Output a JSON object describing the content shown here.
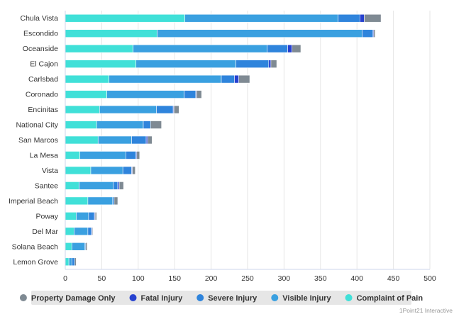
{
  "chart_data": {
    "type": "bar",
    "orientation": "horizontal",
    "stacked": true,
    "categories": [
      "Chula Vista",
      "Escondido",
      "Oceanside",
      "El Cajon",
      "Carlsbad",
      "Coronado",
      "Encinitas",
      "National City",
      "San Marcos",
      "La Mesa",
      "Vista",
      "Santee",
      "Imperial Beach",
      "Poway",
      "Del Mar",
      "Solana Beach",
      "Lemon Grove"
    ],
    "series": [
      {
        "name": "Complaint of Pain",
        "color": "#40e0d8",
        "values": [
          164,
          126,
          93,
          97,
          60,
          57,
          47,
          43,
          45,
          20,
          35,
          19,
          31,
          15,
          12,
          9,
          5
        ]
      },
      {
        "name": "Visible Injury",
        "color": "#3aa0e0",
        "values": [
          210,
          281,
          184,
          137,
          154,
          106,
          78,
          64,
          46,
          63,
          44,
          47,
          34,
          17,
          19,
          18,
          4
        ]
      },
      {
        "name": "Severe Injury",
        "color": "#2f84dc",
        "values": [
          30,
          15,
          28,
          45,
          18,
          16,
          23,
          10,
          20,
          14,
          12,
          6,
          2,
          8,
          5,
          1,
          4
        ]
      },
      {
        "name": "Fatal Injury",
        "color": "#2641cf",
        "values": [
          6,
          1,
          6,
          3,
          6,
          1,
          1,
          0,
          2,
          1,
          1,
          2,
          0,
          1,
          1,
          0,
          0
        ]
      },
      {
        "name": "Property Damage Only",
        "color": "#7f8a93",
        "values": [
          23,
          2,
          12,
          8,
          15,
          7,
          7,
          15,
          6,
          4,
          4,
          6,
          5,
          2,
          1,
          2,
          2
        ]
      }
    ],
    "legend_order": [
      "Property Damage Only",
      "Fatal Injury",
      "Severe Injury",
      "Visible Injury",
      "Complaint of Pain"
    ],
    "x_ticks": [
      0,
      50,
      100,
      150,
      200,
      250,
      300,
      350,
      400,
      450,
      500
    ],
    "xlim": [
      0,
      500
    ],
    "grid": true,
    "legend_position": "bottom"
  },
  "credit": "1Point21 Interactive"
}
